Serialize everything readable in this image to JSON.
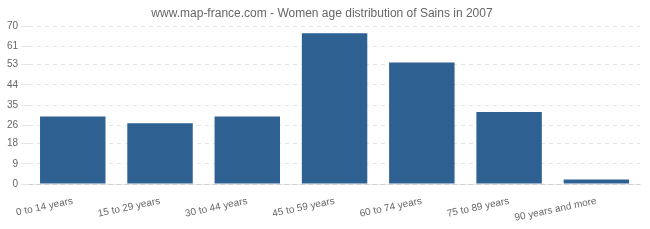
{
  "chart_data": {
    "type": "bar",
    "title": "www.map-france.com - Women age distribution of Sains in 2007",
    "categories": [
      "0 to 14 years",
      "15 to 29 years",
      "30 to 44 years",
      "45 to 59 years",
      "60 to 74 years",
      "75 to 89 years",
      "90 years and more"
    ],
    "values": [
      30,
      27,
      30,
      67,
      54,
      32,
      2
    ],
    "color": "#2e6191",
    "ylim": [
      0,
      70
    ],
    "yticks": [
      0,
      9,
      18,
      26,
      35,
      44,
      53,
      61,
      70
    ],
    "grid": true
  }
}
